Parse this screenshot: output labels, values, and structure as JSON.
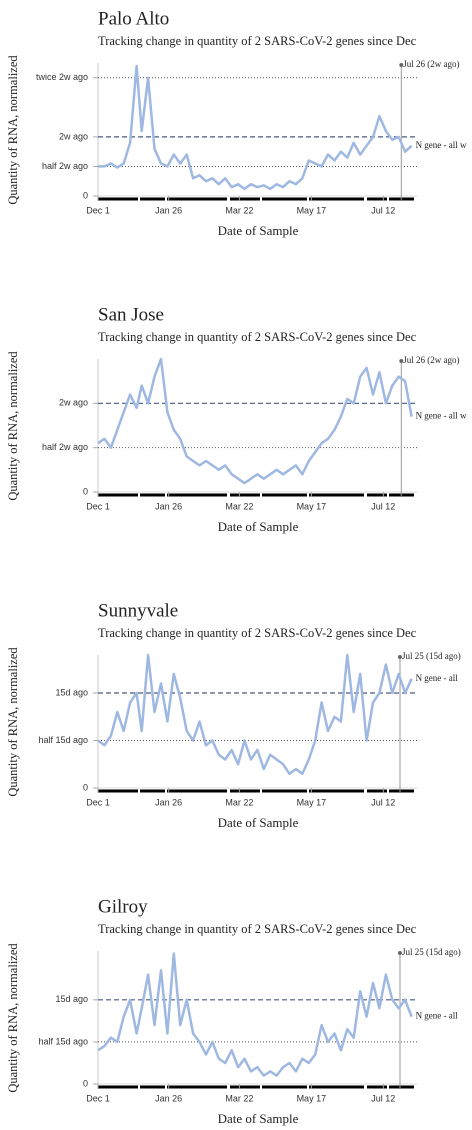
{
  "chart_data": [
    {
      "type": "line",
      "title": "Palo Alto",
      "subtitle": "Tracking change in quantity of 2 SARS-CoV-2 genes since Dec",
      "xlabel": "Date of Sample",
      "ylabel": "Quantity of RNA, normalized",
      "reference_label": "Jul 26 (2w ago)",
      "x": [
        "Dec 1",
        "Dec 6",
        "Dec 11",
        "Dec 16",
        "Dec 21",
        "Dec 26",
        "Dec 31",
        "Jan 5",
        "Jan 10",
        "Jan 15",
        "Jan 20",
        "Jan 25",
        "Jan 30",
        "Feb 4",
        "Feb 9",
        "Feb 14",
        "Feb 19",
        "Feb 24",
        "Mar 1",
        "Mar 6",
        "Mar 11",
        "Mar 16",
        "Mar 21",
        "Mar 26",
        "Mar 31",
        "Apr 5",
        "Apr 10",
        "Apr 15",
        "Apr 20",
        "Apr 25",
        "Apr 30",
        "May 5",
        "May 10",
        "May 15",
        "May 20",
        "May 25",
        "May 30",
        "Jun 4",
        "Jun 9",
        "Jun 14",
        "Jun 19",
        "Jun 24",
        "Jun 29",
        "Jul 4",
        "Jul 9",
        "Jul 14",
        "Jul 19",
        "Jul 24",
        "Jul 29",
        "Aug 3"
      ],
      "series": [
        {
          "name": "N gene - all w",
          "color": "#9fb8e2",
          "values": [
            0.5,
            0.5,
            0.55,
            0.48,
            0.55,
            0.9,
            2.2,
            1.1,
            2.0,
            0.8,
            0.55,
            0.5,
            0.7,
            0.55,
            0.7,
            0.3,
            0.35,
            0.25,
            0.3,
            0.2,
            0.3,
            0.15,
            0.2,
            0.12,
            0.2,
            0.15,
            0.18,
            0.12,
            0.2,
            0.15,
            0.25,
            0.2,
            0.3,
            0.6,
            0.55,
            0.5,
            0.7,
            0.6,
            0.75,
            0.65,
            0.9,
            0.7,
            0.85,
            1.0,
            1.35,
            1.1,
            0.95,
            1.0,
            0.75,
            0.85
          ]
        }
      ],
      "xlim": [
        "Dec 1",
        "Aug 8"
      ],
      "xticks": [
        "Dec 1",
        "Jan 26",
        "Mar 22",
        "May 17",
        "Jul 12"
      ],
      "ylim": [
        0,
        2.25
      ],
      "yticks": [
        0,
        {
          "value": 0.5,
          "label": "half 2w ago",
          "line": "dotted"
        },
        {
          "value": 1,
          "label": "2w ago",
          "line": "dashed"
        },
        {
          "value": 2,
          "label": "twice 2w ago",
          "line": "dotted"
        }
      ]
    },
    {
      "type": "line",
      "title": "San Jose",
      "subtitle": "Tracking change in quantity of 2 SARS-CoV-2 genes since Dec",
      "xlabel": "Date of Sample",
      "ylabel": "Quantity of RNA, normalized",
      "reference_label": "Jul 26 (2w ago)",
      "x": [
        "Dec 1",
        "Dec 6",
        "Dec 11",
        "Dec 16",
        "Dec 21",
        "Dec 26",
        "Dec 31",
        "Jan 5",
        "Jan 10",
        "Jan 15",
        "Jan 20",
        "Jan 25",
        "Jan 30",
        "Feb 4",
        "Feb 9",
        "Feb 14",
        "Feb 19",
        "Feb 24",
        "Mar 1",
        "Mar 6",
        "Mar 11",
        "Mar 16",
        "Mar 21",
        "Mar 26",
        "Mar 31",
        "Apr 5",
        "Apr 10",
        "Apr 15",
        "Apr 20",
        "Apr 25",
        "Apr 30",
        "May 5",
        "May 10",
        "May 15",
        "May 20",
        "May 25",
        "May 30",
        "Jun 4",
        "Jun 9",
        "Jun 14",
        "Jun 19",
        "Jun 24",
        "Jun 29",
        "Jul 4",
        "Jul 9",
        "Jul 14",
        "Jul 19",
        "Jul 24",
        "Jul 29",
        "Aug 3"
      ],
      "series": [
        {
          "name": "N gene - all w",
          "color": "#9fb8e2",
          "values": [
            0.55,
            0.6,
            0.5,
            0.7,
            0.9,
            1.1,
            0.95,
            1.2,
            1.0,
            1.3,
            1.5,
            0.9,
            0.7,
            0.6,
            0.4,
            0.35,
            0.3,
            0.35,
            0.3,
            0.25,
            0.3,
            0.2,
            0.15,
            0.1,
            0.15,
            0.2,
            0.15,
            0.2,
            0.25,
            0.2,
            0.25,
            0.3,
            0.2,
            0.35,
            0.45,
            0.55,
            0.6,
            0.7,
            0.85,
            1.05,
            1.0,
            1.3,
            1.4,
            1.1,
            1.35,
            1.0,
            1.2,
            1.3,
            1.25,
            0.85
          ]
        }
      ],
      "xlim": [
        "Dec 1",
        "Aug 8"
      ],
      "xticks": [
        "Dec 1",
        "Jan 26",
        "Mar 22",
        "May 17",
        "Jul 12"
      ],
      "ylim": [
        0,
        1.5
      ],
      "yticks": [
        0,
        {
          "value": 0.5,
          "label": "half 2w ago",
          "line": "dotted"
        },
        {
          "value": 1,
          "label": "2w ago",
          "line": "dashed"
        }
      ]
    },
    {
      "type": "line",
      "title": "Sunnyvale",
      "subtitle": "Tracking change in quantity of 2 SARS-CoV-2 genes since Dec",
      "xlabel": "Date of Sample",
      "ylabel": "Quantity of RNA, normalized",
      "reference_label": "Jul 25 (15d ago)",
      "x": [
        "Dec 1",
        "Dec 6",
        "Dec 11",
        "Dec 16",
        "Dec 21",
        "Dec 26",
        "Dec 31",
        "Jan 5",
        "Jan 10",
        "Jan 15",
        "Jan 20",
        "Jan 25",
        "Jan 30",
        "Feb 4",
        "Feb 9",
        "Feb 14",
        "Feb 19",
        "Feb 24",
        "Mar 1",
        "Mar 6",
        "Mar 11",
        "Mar 16",
        "Mar 21",
        "Mar 26",
        "Mar 31",
        "Apr 5",
        "Apr 10",
        "Apr 15",
        "Apr 20",
        "Apr 25",
        "Apr 30",
        "May 5",
        "May 10",
        "May 15",
        "May 20",
        "May 25",
        "May 30",
        "Jun 4",
        "Jun 9",
        "Jun 14",
        "Jun 19",
        "Jun 24",
        "Jun 29",
        "Jul 4",
        "Jul 9",
        "Jul 14",
        "Jul 19",
        "Jul 24",
        "Jul 29",
        "Aug 3"
      ],
      "series": [
        {
          "name": "N gene - all",
          "color": "#9fb8e2",
          "values": [
            0.5,
            0.45,
            0.55,
            0.8,
            0.6,
            0.9,
            1.0,
            0.6,
            1.4,
            0.8,
            1.1,
            0.7,
            1.2,
            0.95,
            0.6,
            0.5,
            0.7,
            0.45,
            0.5,
            0.35,
            0.3,
            0.4,
            0.25,
            0.5,
            0.3,
            0.4,
            0.2,
            0.35,
            0.3,
            0.25,
            0.15,
            0.2,
            0.15,
            0.3,
            0.5,
            0.9,
            0.6,
            0.75,
            0.7,
            1.4,
            0.8,
            1.2,
            0.5,
            0.9,
            1.0,
            1.3,
            1.0,
            1.2,
            1.0,
            1.15
          ]
        }
      ],
      "xlim": [
        "Dec 1",
        "Aug 8"
      ],
      "xticks": [
        "Dec 1",
        "Jan 26",
        "Mar 22",
        "May 17",
        "Jul 12"
      ],
      "ylim": [
        0,
        1.4
      ],
      "yticks": [
        0,
        {
          "value": 0.5,
          "label": "half 15d ago",
          "line": "dotted"
        },
        {
          "value": 1,
          "label": "15d ago",
          "line": "dashed"
        }
      ]
    },
    {
      "type": "line",
      "title": "Gilroy",
      "subtitle": "Tracking change in quantity of 2 SARS-CoV-2 genes since Dec",
      "xlabel": "Date of Sample",
      "ylabel": "Quantity of RNA, normalized",
      "reference_label": "Jul 25 (15d ago)",
      "x": [
        "Dec 1",
        "Dec 6",
        "Dec 11",
        "Dec 16",
        "Dec 21",
        "Dec 26",
        "Dec 31",
        "Jan 5",
        "Jan 10",
        "Jan 15",
        "Jan 20",
        "Jan 25",
        "Jan 30",
        "Feb 4",
        "Feb 9",
        "Feb 14",
        "Feb 19",
        "Feb 24",
        "Mar 1",
        "Mar 6",
        "Mar 11",
        "Mar 16",
        "Mar 21",
        "Mar 26",
        "Mar 31",
        "Apr 5",
        "Apr 10",
        "Apr 15",
        "Apr 20",
        "Apr 25",
        "Apr 30",
        "May 5",
        "May 10",
        "May 15",
        "May 20",
        "May 25",
        "May 30",
        "Jun 4",
        "Jun 9",
        "Jun 14",
        "Jun 19",
        "Jun 24",
        "Jun 29",
        "Jul 4",
        "Jul 9",
        "Jul 14",
        "Jul 19",
        "Jul 24",
        "Jul 29",
        "Aug 3"
      ],
      "series": [
        {
          "name": "N gene - all",
          "color": "#9fb8e2",
          "values": [
            0.4,
            0.45,
            0.55,
            0.5,
            0.8,
            1.0,
            0.6,
            0.9,
            1.3,
            0.7,
            1.35,
            0.6,
            1.55,
            0.7,
            1.0,
            0.6,
            0.5,
            0.35,
            0.5,
            0.3,
            0.25,
            0.4,
            0.2,
            0.3,
            0.15,
            0.2,
            0.1,
            0.15,
            0.1,
            0.2,
            0.25,
            0.15,
            0.3,
            0.25,
            0.35,
            0.7,
            0.5,
            0.6,
            0.4,
            0.65,
            0.55,
            1.1,
            0.8,
            1.2,
            0.9,
            1.3,
            1.0,
            0.9,
            1.0,
            0.8
          ]
        }
      ],
      "xlim": [
        "Dec 1",
        "Aug 8"
      ],
      "xticks": [
        "Dec 1",
        "Jan 26",
        "Mar 22",
        "May 17",
        "Jul 12"
      ],
      "ylim": [
        0,
        1.58
      ],
      "yticks": [
        0,
        {
          "value": 0.5,
          "label": "half 15d ago",
          "line": "dotted"
        },
        {
          "value": 1,
          "label": "15d ago",
          "line": "dashed"
        }
      ]
    }
  ]
}
